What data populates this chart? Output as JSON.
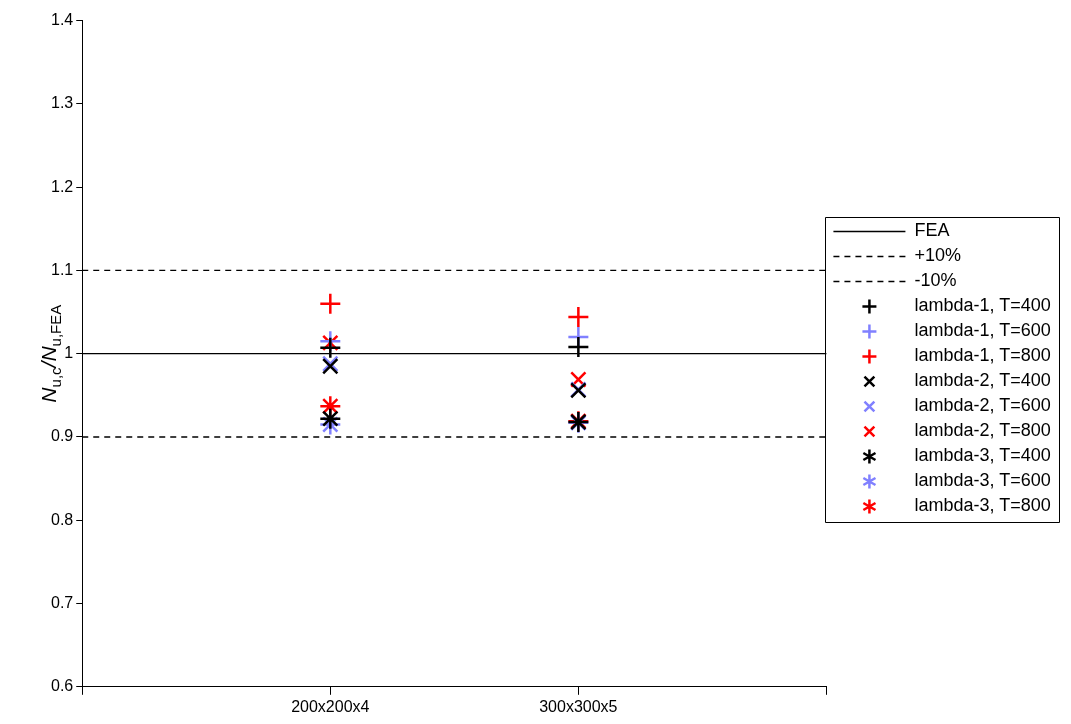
{
  "chart_data": {
    "type": "scatter",
    "ylabel": "N$_{u,c}$/N$_{u,FEA}$",
    "categories": [
      null,
      "200x200x4",
      "300x300x5",
      null
    ],
    "ylim": [
      0.6,
      1.4
    ],
    "yticks": [
      0.6,
      0.7,
      0.8,
      0.9,
      1,
      1.1,
      1.2,
      1.3,
      1.4
    ],
    "grid": false,
    "legend": "right",
    "series": [
      {
        "name": "FEA",
        "type": "line",
        "color": "#000000",
        "line_style": "solid",
        "marker": "none",
        "values": [
          1,
          1,
          1,
          1
        ]
      },
      {
        "name": "+10%",
        "type": "line",
        "color": "#000000",
        "line_style": "dashed",
        "marker": "none",
        "values": [
          1.1,
          1.1,
          1.1,
          1.1
        ]
      },
      {
        "name": "-10%",
        "type": "line",
        "color": "#000000",
        "line_style": "dashed",
        "marker": "none",
        "values": [
          0.9,
          0.9,
          0.9,
          0.9
        ]
      },
      {
        "name": "lambda-1, T=400",
        "color": "#000000",
        "marker": "cross",
        "values": [
          null,
          1.007,
          1.008,
          null
        ]
      },
      {
        "name": "lambda-1, T=600",
        "color": "#8080ff",
        "marker": "cross",
        "values": [
          null,
          1.015,
          1.02,
          null
        ]
      },
      {
        "name": "lambda-1, T=800",
        "color": "#ff0000",
        "marker": "cross",
        "values": [
          null,
          1.06,
          1.044,
          null
        ]
      },
      {
        "name": "lambda-2, T=400",
        "color": "#000000",
        "marker": "x",
        "values": [
          null,
          0.985,
          0.956,
          null
        ]
      },
      {
        "name": "lambda-2, T=600",
        "color": "#8080ff",
        "marker": "x",
        "values": [
          null,
          0.988,
          0.957,
          null
        ]
      },
      {
        "name": "lambda-2, T=800",
        "color": "#ff0000",
        "marker": "x",
        "values": [
          null,
          1.013,
          0.969,
          null
        ]
      },
      {
        "name": "lambda-3, T=400",
        "color": "#000000",
        "values": [
          null,
          0.922,
          0.918,
          null
        ]
      },
      {
        "name": "lambda-3, T=600",
        "color": "#8080ff",
        "values": [
          null,
          0.915,
          0.917,
          null
        ]
      },
      {
        "name": "lambda-3, T=800",
        "color": "#ff0000",
        "values": [
          null,
          0.937,
          0.919,
          null
        ]
      }
    ]
  }
}
